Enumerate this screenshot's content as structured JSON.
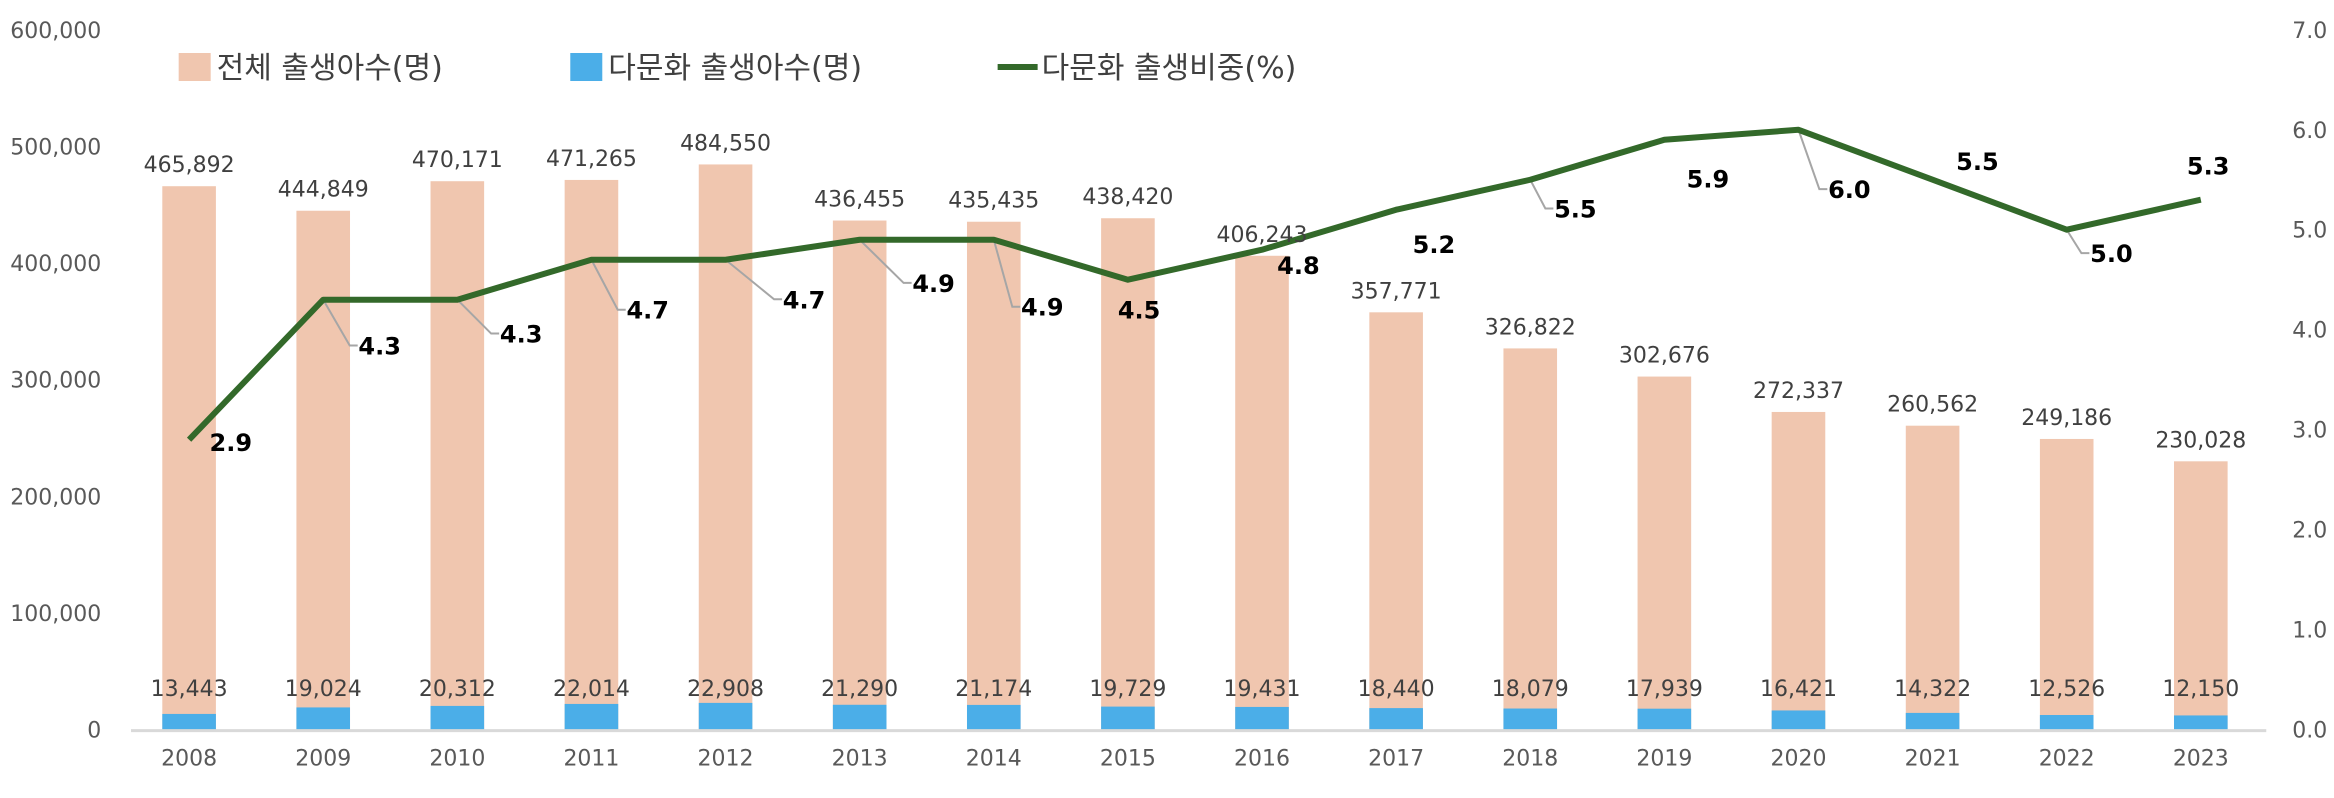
{
  "chart_data": {
    "type": "bar+line",
    "categories": [
      "2008",
      "2009",
      "2010",
      "2011",
      "2012",
      "2013",
      "2014",
      "2015",
      "2016",
      "2017",
      "2018",
      "2019",
      "2020",
      "2021",
      "2022",
      "2023"
    ],
    "series": [
      {
        "name": "전체 출생아수(명)",
        "type": "bar",
        "axis": "left",
        "color": "#F0C6AF",
        "values": [
          465892,
          444849,
          470171,
          471265,
          484550,
          436455,
          435435,
          438420,
          406243,
          357771,
          326822,
          302676,
          272337,
          260562,
          249186,
          230028
        ],
        "labels": [
          "465,892",
          "444,849",
          "470,171",
          "471,265",
          "484,550",
          "436,455",
          "435,435",
          "438,420",
          "406,243",
          "357,771",
          "326,822",
          "302,676",
          "272,337",
          "260,562",
          "249,186",
          "230,028"
        ]
      },
      {
        "name": "다문화 출생아수(명)",
        "type": "bar",
        "axis": "left",
        "color": "#4BAEE8",
        "values": [
          13443,
          19024,
          20312,
          22014,
          22908,
          21290,
          21174,
          19729,
          19431,
          18440,
          18079,
          17939,
          16421,
          14322,
          12526,
          12150
        ],
        "labels": [
          "13,443",
          "19,024",
          "20,312",
          "22,014",
          "22,908",
          "21,290",
          "21,174",
          "19,729",
          "19,431",
          "18,440",
          "18,079",
          "17,939",
          "16,421",
          "14,322",
          "12,526",
          "12,150"
        ]
      },
      {
        "name": "다문화 출생비중(%)",
        "type": "line",
        "axis": "right",
        "color": "#33692A",
        "values": [
          2.9,
          4.3,
          4.3,
          4.7,
          4.7,
          4.9,
          4.9,
          4.5,
          4.8,
          5.2,
          5.5,
          5.9,
          6.0,
          5.5,
          5.0,
          5.3
        ],
        "labels": [
          "2.9",
          "4.3",
          "4.3",
          "4.7",
          "4.7",
          "4.9",
          "4.9",
          "4.5",
          "4.8",
          "5.2",
          "5.5",
          "5.9",
          "6.0",
          "5.5",
          "5.0",
          "5.3"
        ]
      }
    ],
    "y_left": {
      "range": [
        0,
        600000
      ],
      "ticks": [
        "0",
        "100,000",
        "200,000",
        "300,000",
        "400,000",
        "500,000",
        "600,000"
      ]
    },
    "y_right": {
      "range": [
        0,
        7
      ],
      "ticks": [
        "0.0",
        "1.0",
        "2.0",
        "3.0",
        "4.0",
        "5.0",
        "6.0",
        "7.0"
      ]
    },
    "grid": false,
    "legend": "top"
  }
}
